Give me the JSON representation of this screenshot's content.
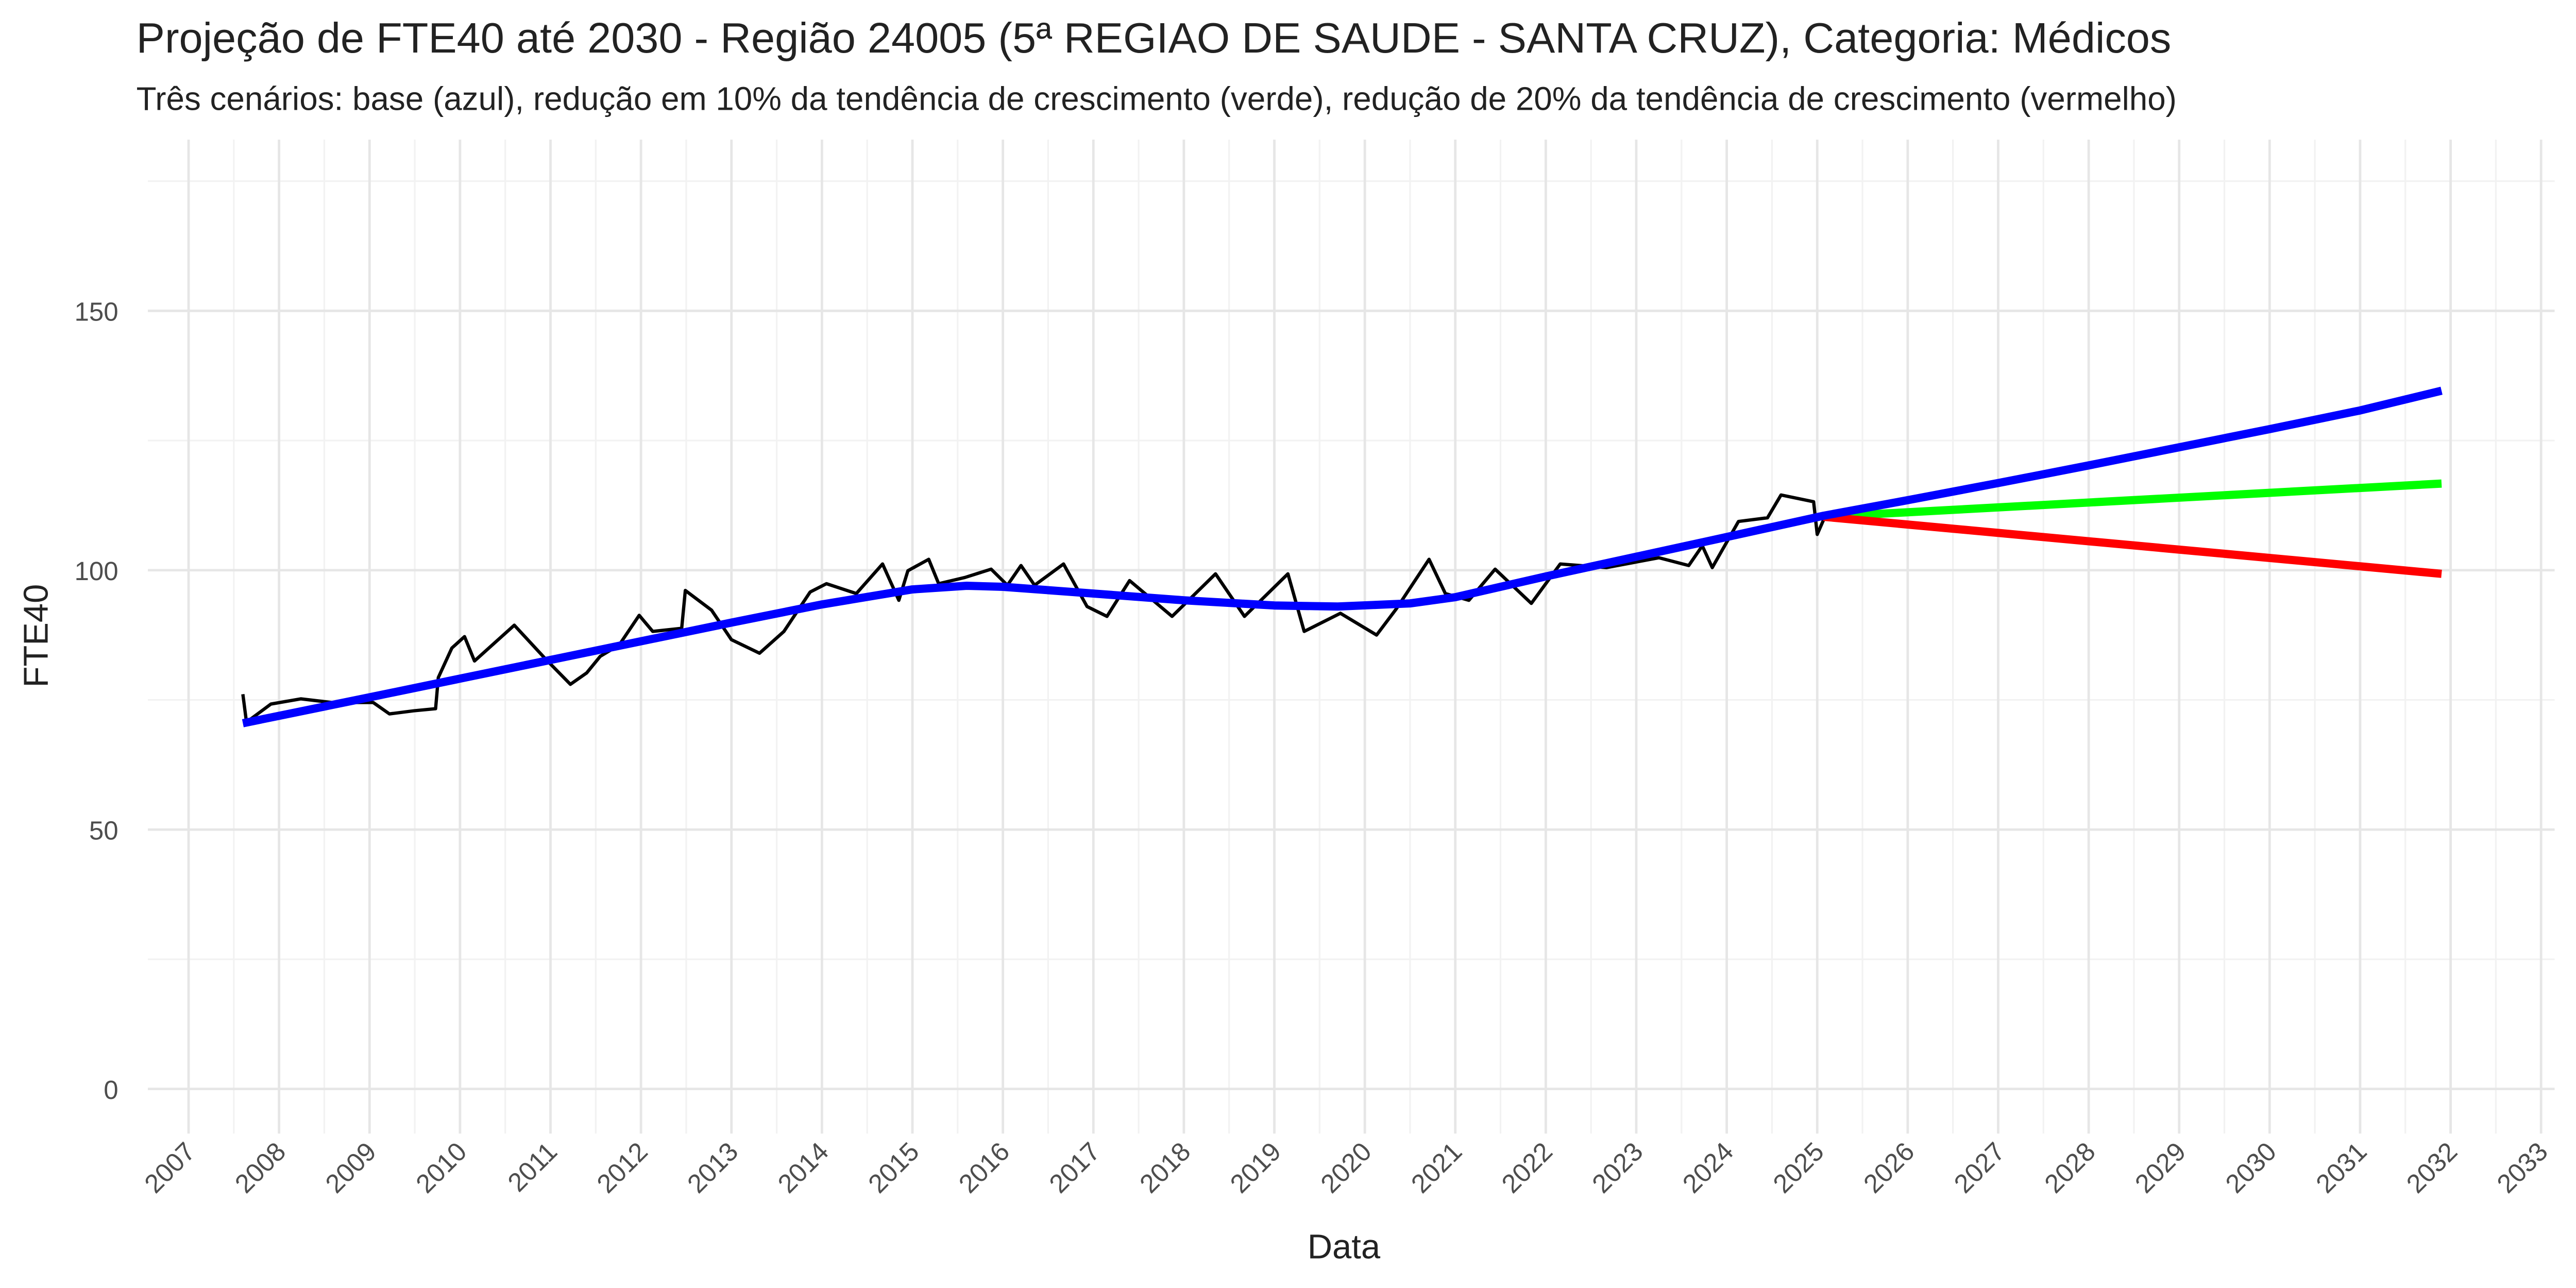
{
  "chart_data": {
    "type": "line",
    "title": "Projeção de FTE40 até 2030 - Região 24005 (5ª REGIAO DE SAUDE - SANTA CRUZ), Categoria: Médicos",
    "subtitle": "Três cenários: base (azul), redução em 10% da tendência de crescimento (verde), redução de 20% da tendência de crescimento (vermelho)",
    "xlabel": "Data",
    "ylabel": "FTE40",
    "xlim": [
      2006.55,
      2033.15
    ],
    "xticks": [
      2007,
      2008,
      2009,
      2010,
      2011,
      2012,
      2013,
      2014,
      2015,
      2016,
      2017,
      2018,
      2019,
      2020,
      2021,
      2022,
      2023,
      2024,
      2025,
      2026,
      2027,
      2028,
      2029,
      2030,
      2031,
      2032,
      2033
    ],
    "ylim": [
      -8.6,
      183
    ],
    "yticks": [
      0,
      50,
      100,
      150
    ],
    "grid": true,
    "series": [
      {
        "color": "#000000",
        "x": [
          2007.6,
          2007.64,
          2007.91,
          2008.24,
          2008.58,
          2009.04,
          2009.22,
          2009.49,
          2009.73,
          2009.76,
          2009.91,
          2010.05,
          2010.16,
          2010.6,
          2010.95,
          2011.22,
          2011.4,
          2011.55,
          2011.76,
          2011.98,
          2012.13,
          2012.45,
          2012.49,
          2012.78,
          2013.0,
          2013.31,
          2013.58,
          2013.87,
          2014.05,
          2014.38,
          2014.67,
          2014.85,
          2014.95,
          2015.18,
          2015.29,
          2015.58,
          2015.87,
          2016.05,
          2016.2,
          2016.35,
          2016.67,
          2016.93,
          2017.15,
          2017.4,
          2017.87,
          2018.35,
          2018.67,
          2019.15,
          2019.33,
          2019.73,
          2020.13,
          2020.35,
          2020.71,
          2020.89,
          2021.15,
          2021.44,
          2021.84,
          2022.16,
          2022.67,
          2023.25,
          2023.58,
          2023.73,
          2023.84,
          2024.13,
          2024.45,
          2024.6,
          2024.96,
          2025.0,
          2025.07
        ],
        "values": [
          76.1,
          70.7,
          74.2,
          75.2,
          74.5,
          74.5,
          72.3,
          72.9,
          73.3,
          79.3,
          85.0,
          87.2,
          82.5,
          89.4,
          82.8,
          78.0,
          80.2,
          83.4,
          85.6,
          91.3,
          88.2,
          88.8,
          96.1,
          92.3,
          86.6,
          84.0,
          88.2,
          95.8,
          97.4,
          95.5,
          101.2,
          94.2,
          99.9,
          102.1,
          97.4,
          98.6,
          100.2,
          97.1,
          100.9,
          97.1,
          101.2,
          93.0,
          91.1,
          98.0,
          91.1,
          99.3,
          91.1,
          99.3,
          88.2,
          91.7,
          87.5,
          92.6,
          102.1,
          95.5,
          94.2,
          100.2,
          93.6,
          101.2,
          100.5,
          102.4,
          100.9,
          104.7,
          100.5,
          109.4,
          110.1,
          114.5,
          113.2,
          106.9,
          109.7
        ],
        "width": 2
      },
      {
        "color": "#00ff00",
        "x": [
          2025.07,
          2031.9
        ],
        "values": [
          110.3,
          116.7
        ],
        "width": 5
      },
      {
        "color": "#ff0000",
        "x": [
          2025.07,
          2031.9
        ],
        "values": [
          110.3,
          99.3
        ],
        "width": 5
      },
      {
        "color": "#0000ff",
        "x": [
          2007.6,
          2009,
          2010,
          2011,
          2012,
          2013,
          2014,
          2015,
          2015.6,
          2016,
          2017,
          2018,
          2019,
          2019.7,
          2020.5,
          2021,
          2022,
          2023,
          2024,
          2025.07,
          2026,
          2027,
          2028,
          2029,
          2030,
          2031,
          2031.9
        ],
        "values": [
          70.5,
          75.5,
          79.1,
          82.7,
          86.3,
          89.9,
          93.4,
          96.3,
          97,
          96.8,
          95.5,
          94.2,
          93.2,
          93,
          93.6,
          94.8,
          98.8,
          102.6,
          106.4,
          110.5,
          113.5,
          116.8,
          120.2,
          123.7,
          127.2,
          130.8,
          134.6
        ],
        "width": 5
      }
    ]
  }
}
